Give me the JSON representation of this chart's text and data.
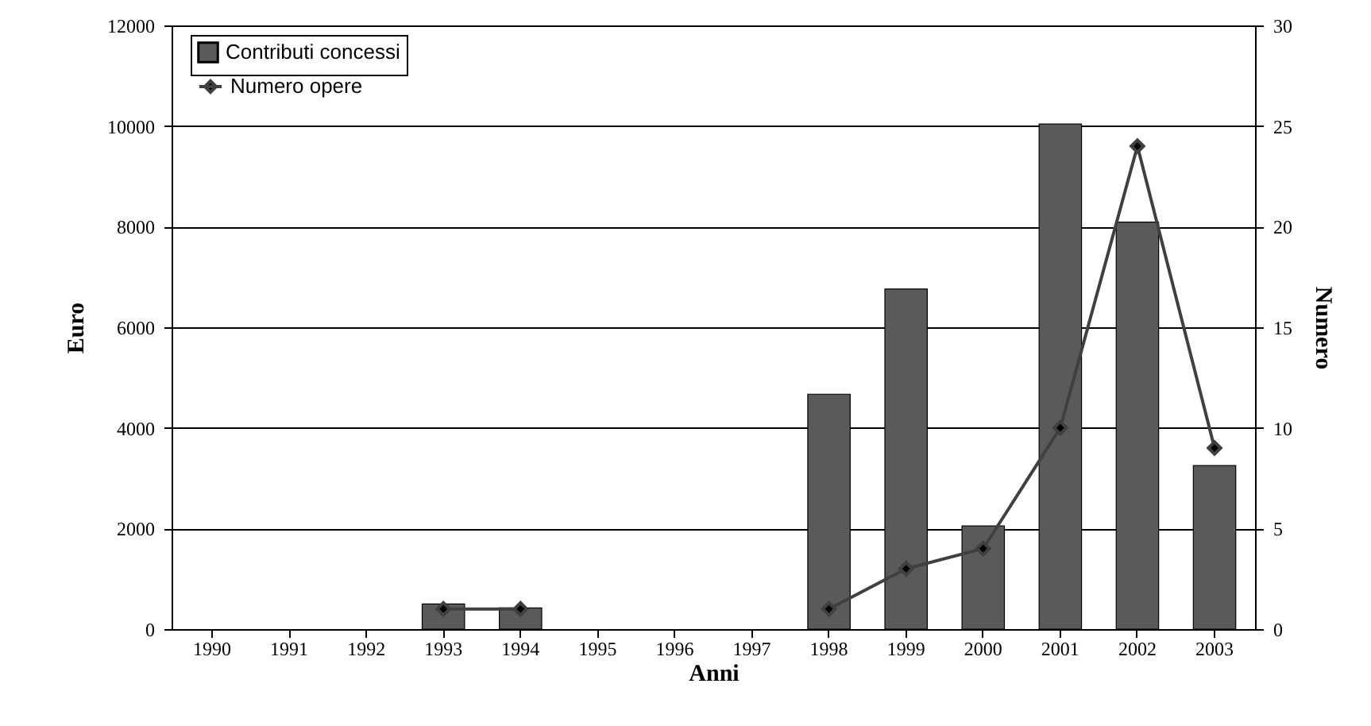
{
  "chart_data": {
    "type": "bar",
    "xlabel": "Anni",
    "ylabel": "Euro",
    "y2label": "Numero",
    "categories": [
      "1990",
      "1991",
      "1992",
      "1993",
      "1994",
      "1995",
      "1996",
      "1997",
      "1998",
      "1999",
      "2000",
      "2001",
      "2002",
      "2003"
    ],
    "series": [
      {
        "name": "Contributi concessi",
        "color": "#5a5a5a",
        "values": [
          null,
          null,
          null,
          500,
          420,
          null,
          null,
          null,
          4670,
          6760,
          2050,
          10040,
          8090,
          3250
        ]
      },
      {
        "name": "Numero opere",
        "type": "line",
        "axis": "y2",
        "color": "#404040",
        "marker": "diamond",
        "values": [
          null,
          null,
          null,
          1,
          1,
          null,
          null,
          null,
          1,
          3,
          4,
          10,
          24,
          9
        ]
      }
    ],
    "ylim": [
      0,
      12000
    ],
    "yticks": [
      0,
      2000,
      4000,
      6000,
      8000,
      10000,
      12000
    ],
    "y2lim": [
      0,
      30
    ],
    "y2ticks": [
      0,
      5,
      10,
      15,
      20,
      25,
      30
    ],
    "grid": "y",
    "legend": "top left"
  }
}
